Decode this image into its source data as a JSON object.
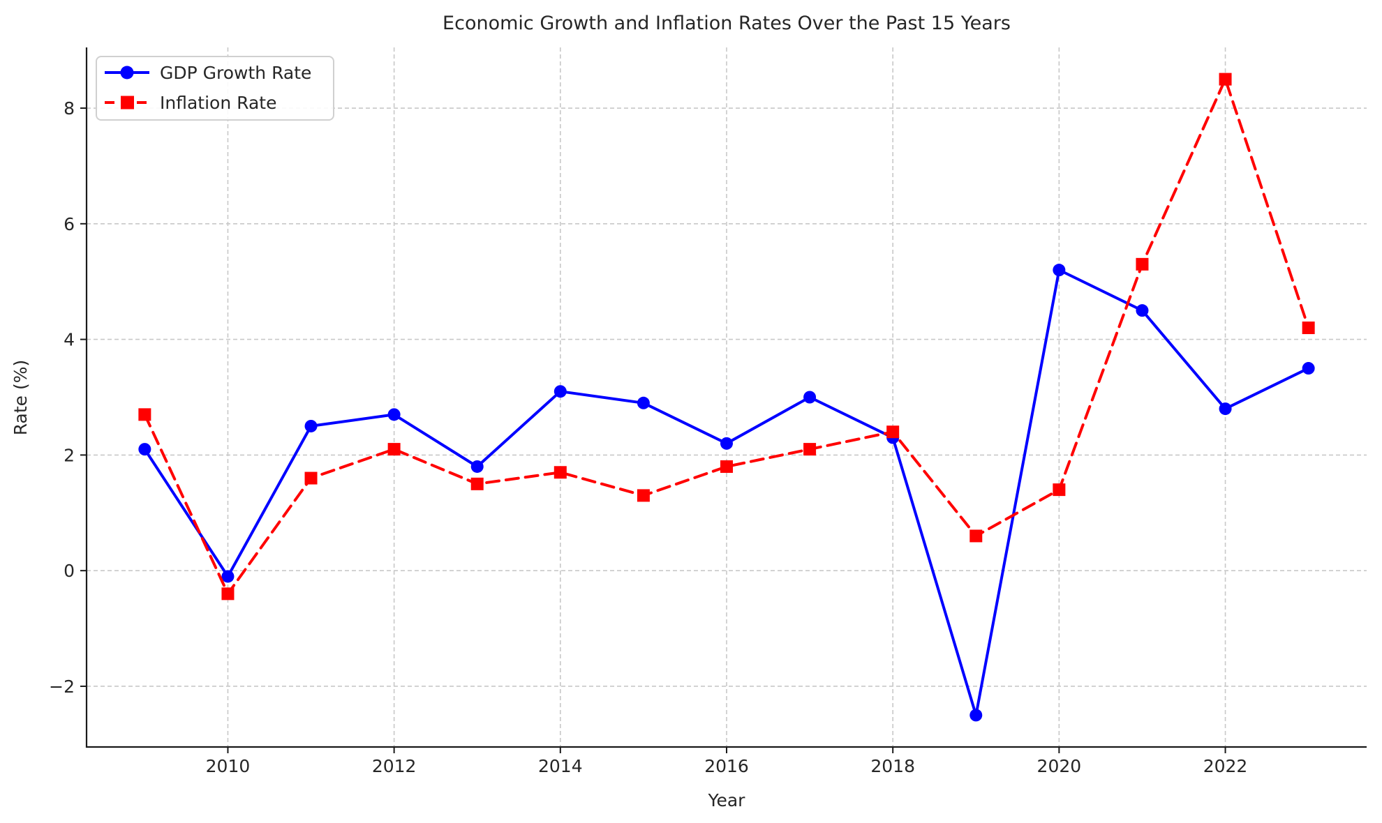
{
  "chart_data": {
    "type": "line",
    "title": "Economic Growth and Inflation Rates Over the Past 15 Years",
    "xlabel": "Year",
    "ylabel": "Rate (%)",
    "x": [
      2009,
      2010,
      2011,
      2012,
      2013,
      2014,
      2015,
      2016,
      2017,
      2018,
      2019,
      2020,
      2021,
      2022,
      2023
    ],
    "series": [
      {
        "name": "GDP Growth Rate",
        "values": [
          2.1,
          -0.1,
          2.5,
          2.7,
          1.8,
          3.1,
          2.9,
          2.2,
          3.0,
          2.3,
          -2.5,
          5.2,
          4.5,
          2.8,
          3.5
        ],
        "color": "#0000ff",
        "line_style": "solid",
        "marker": "circle"
      },
      {
        "name": "Inflation Rate",
        "values": [
          2.7,
          -0.4,
          1.6,
          2.1,
          1.5,
          1.7,
          1.3,
          1.8,
          2.1,
          2.4,
          0.6,
          1.4,
          5.3,
          8.5,
          4.2
        ],
        "color": "#ff0000",
        "line_style": "dashed",
        "marker": "square"
      }
    ],
    "xlim": [
      2008.3,
      2023.7
    ],
    "ylim": [
      -3.05,
      9.05
    ],
    "x_ticks": [
      2010,
      2012,
      2014,
      2016,
      2018,
      2020,
      2022
    ],
    "y_ticks": [
      -2,
      0,
      2,
      4,
      6,
      8
    ],
    "grid": true,
    "grid_style": "dashed",
    "legend_position": "upper left",
    "grid_color": "#c8c8c8",
    "spine_color": "#1a1a1a",
    "text_color": "#262626"
  }
}
